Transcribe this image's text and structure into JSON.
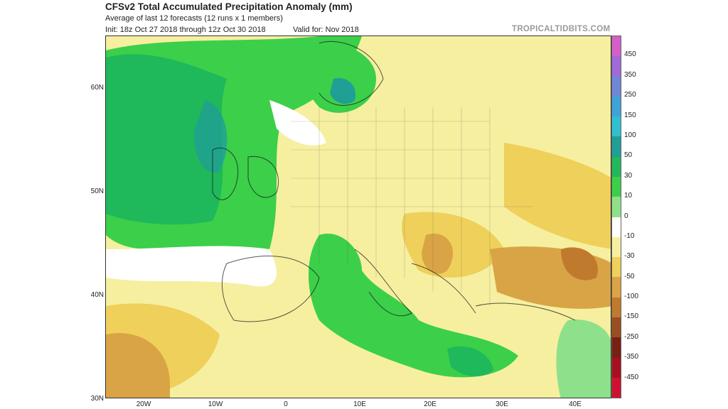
{
  "header": {
    "title": "CFSv2 Total Accumulated Precipitation Anomaly (mm)",
    "subtitle": "Average of last 12 forecasts (12 runs x 1 members)",
    "init": "Init: 18z Oct 27 2018 through 12z Oct 30 2018",
    "valid": "Valid for: Nov 2018",
    "source": "TROPICALTIDBITS.COM"
  },
  "axes": {
    "lat_labels": [
      "60N",
      "50N",
      "40N",
      "30N"
    ],
    "lon_labels": [
      "20W",
      "10W",
      "0",
      "10E",
      "20E",
      "30E",
      "40E"
    ]
  },
  "colorbar": {
    "labels": [
      "450",
      "350",
      "250",
      "150",
      "100",
      "50",
      "30",
      "10",
      "0",
      "-10",
      "-30",
      "-50",
      "-100",
      "-150",
      "-250",
      "-350",
      "-450"
    ],
    "colors": [
      "#d55fc8",
      "#a06ad8",
      "#6f87d8",
      "#3fa3d9",
      "#2fbfcf",
      "#1f9f96",
      "#1fb85a",
      "#3ccf4a",
      "#8fe08a",
      "#ffffff",
      "#f6efa0",
      "#eed05a",
      "#d9a445",
      "#c07a2e",
      "#9a4d20",
      "#7a1f14",
      "#a80f1f",
      "#d01030"
    ]
  }
}
